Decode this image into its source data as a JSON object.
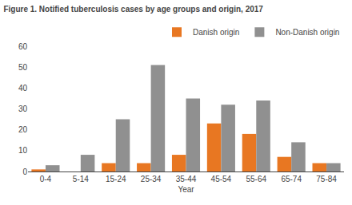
{
  "chart_data": {
    "type": "bar",
    "title": "Figure 1. Notified tuberculosis cases by age groups and origin, 2017",
    "xlabel": "Year",
    "categories": [
      "0-4",
      "5-14",
      "15-24",
      "25-34",
      "35-44",
      "45-54",
      "55-64",
      "65-74",
      "75-84"
    ],
    "series": [
      {
        "name": "Danish origin",
        "color": "#E87722",
        "values": [
          1,
          0,
          4,
          4,
          8,
          23,
          18,
          7,
          4
        ]
      },
      {
        "name": "Non-Danish origin",
        "color": "#909090",
        "values": [
          3,
          8,
          25,
          51,
          35,
          32,
          34,
          14,
          4
        ]
      }
    ],
    "ylim": [
      0,
      60
    ],
    "yticks": [
      0,
      10,
      20,
      30,
      40,
      50,
      60
    ],
    "grid": false,
    "legend": "upper right"
  }
}
